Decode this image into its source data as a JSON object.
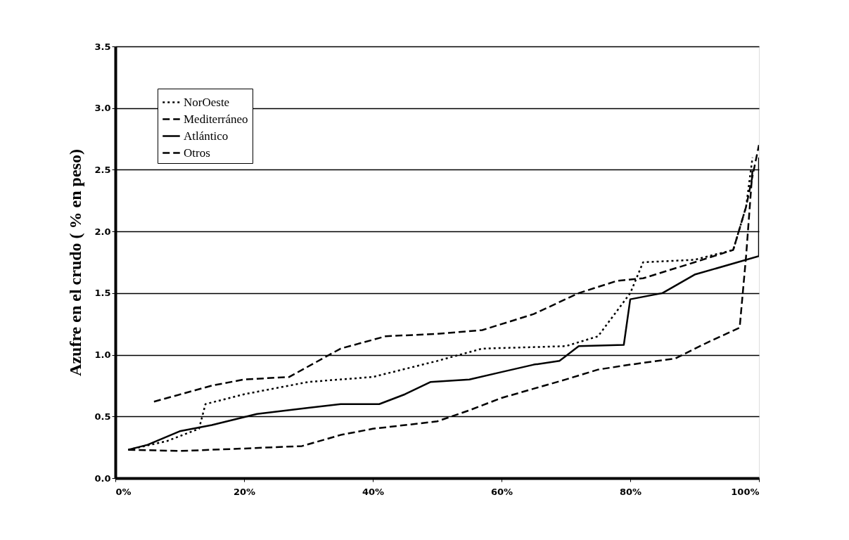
{
  "chart_data": {
    "type": "line",
    "ylabel": "Azufre en el crudo ( % en peso)",
    "xlim": [
      0,
      100
    ],
    "xticks": [
      {
        "value": 0,
        "label": "0%"
      },
      {
        "value": 20,
        "label": "20%"
      },
      {
        "value": 40,
        "label": "40%"
      },
      {
        "value": 60,
        "label": "60%"
      },
      {
        "value": 80,
        "label": "80%"
      },
      {
        "value": 100,
        "label": "100%"
      }
    ],
    "ylim": [
      0,
      3.5
    ],
    "yticks": [
      {
        "value": 0,
        "label": "0.0"
      },
      0.5,
      {
        "value": 1,
        "label": "1.0"
      },
      1.5,
      {
        "value": 2,
        "label": "2.0"
      },
      2.5,
      {
        "value": 3,
        "label": "3.0"
      },
      3.5
    ],
    "grid": "y",
    "legend": "top left",
    "marker": "none",
    "series": [
      {
        "name": "NorOeste",
        "color": "#000000",
        "line_style": "dotted",
        "x": [
          2,
          8,
          13,
          14,
          20,
          30,
          40,
          50,
          57,
          70,
          75,
          80,
          82,
          90,
          96,
          98,
          99
        ],
        "values": [
          0.23,
          0.3,
          0.4,
          0.6,
          0.68,
          0.78,
          0.82,
          0.95,
          1.05,
          1.07,
          1.15,
          1.5,
          1.75,
          1.77,
          1.85,
          2.2,
          2.6
        ]
      },
      {
        "name": "Mediterráneo",
        "color": "#000000",
        "line_style": "dashed",
        "x": [
          6,
          15,
          20,
          27,
          35,
          42,
          50,
          57,
          65,
          72,
          78,
          82,
          90,
          96,
          98,
          100
        ],
        "values": [
          0.62,
          0.75,
          0.8,
          0.82,
          1.05,
          1.15,
          1.17,
          1.2,
          1.33,
          1.5,
          1.6,
          1.62,
          1.75,
          1.85,
          2.2,
          2.7
        ]
      },
      {
        "name": "Atlántico",
        "color": "#000000",
        "line_style": "solid",
        "x": [
          2,
          5,
          10,
          15,
          22,
          30,
          35,
          41,
          45,
          49,
          55,
          60,
          65,
          69,
          72,
          79,
          80,
          85,
          90,
          100,
          100
        ],
        "values": [
          0.23,
          0.27,
          0.38,
          0.43,
          0.52,
          0.57,
          0.6,
          0.6,
          0.68,
          0.78,
          0.8,
          0.86,
          0.92,
          0.95,
          1.07,
          1.08,
          1.45,
          1.5,
          1.65,
          1.8,
          2.6
        ]
      },
      {
        "name": "Otros",
        "color": "#000000",
        "line_style": "dashed",
        "x": [
          2,
          10,
          20,
          29,
          35,
          40,
          50,
          55,
          60,
          70,
          75,
          80,
          87,
          92,
          97,
          98,
          99
        ],
        "values": [
          0.23,
          0.22,
          0.24,
          0.26,
          0.35,
          0.4,
          0.46,
          0.55,
          0.65,
          0.8,
          0.88,
          0.92,
          0.97,
          1.1,
          1.22,
          1.8,
          2.5
        ]
      }
    ]
  }
}
